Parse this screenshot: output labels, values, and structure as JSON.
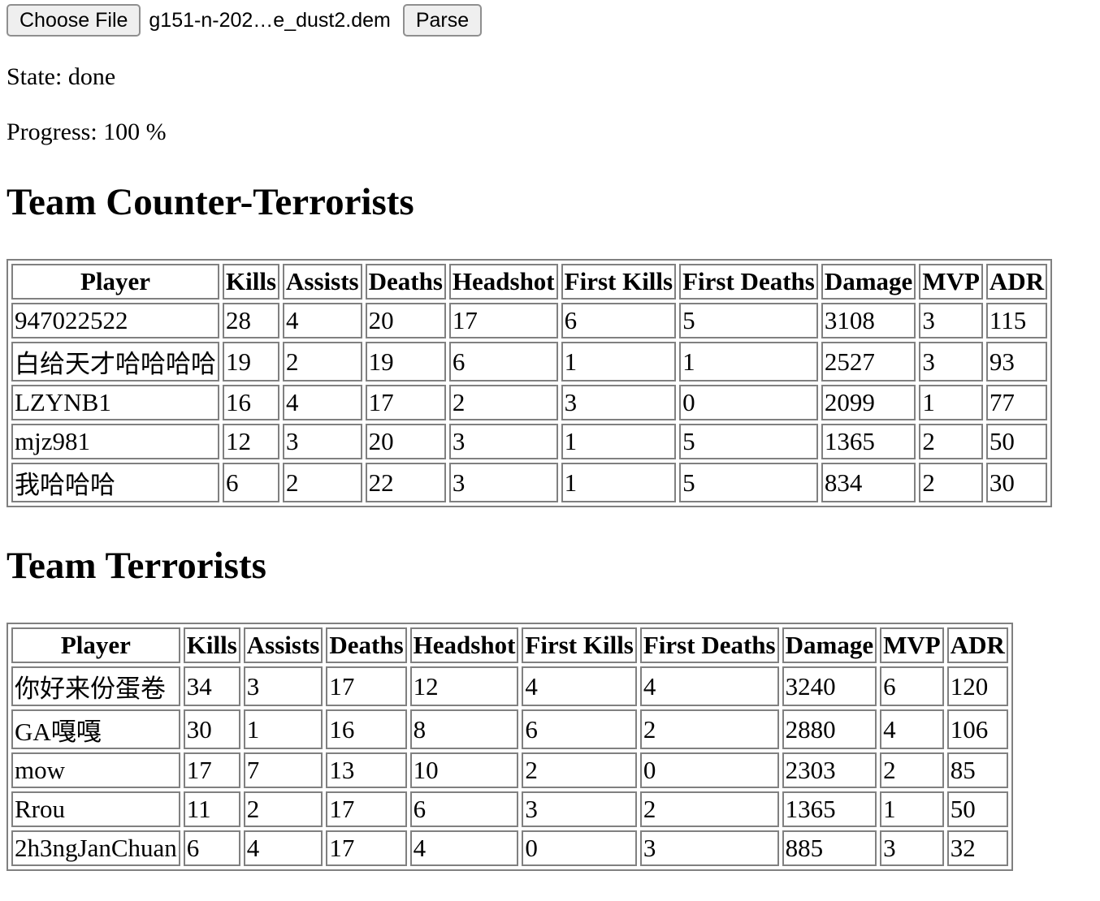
{
  "file_input": {
    "choose_label": "Choose File",
    "filename": "g151-n-202…e_dust2.dem",
    "parse_label": "Parse"
  },
  "status": {
    "state": "State: done",
    "progress": "Progress: 100 %"
  },
  "columns": [
    "Player",
    "Kills",
    "Assists",
    "Deaths",
    "Headshot",
    "First Kills",
    "First Deaths",
    "Damage",
    "MVP",
    "ADR"
  ],
  "teams": [
    {
      "title": "Team Counter-Terrorists",
      "rows": [
        [
          "947022522",
          "28",
          "4",
          "20",
          "17",
          "6",
          "5",
          "3108",
          "3",
          "115"
        ],
        [
          "白给天才哈哈哈哈",
          "19",
          "2",
          "19",
          "6",
          "1",
          "1",
          "2527",
          "3",
          "93"
        ],
        [
          "LZYNB1",
          "16",
          "4",
          "17",
          "2",
          "3",
          "0",
          "2099",
          "1",
          "77"
        ],
        [
          "mjz981",
          "12",
          "3",
          "20",
          "3",
          "1",
          "5",
          "1365",
          "2",
          "50"
        ],
        [
          "我哈哈哈",
          "6",
          "2",
          "22",
          "3",
          "1",
          "5",
          "834",
          "2",
          "30"
        ]
      ]
    },
    {
      "title": "Team Terrorists",
      "rows": [
        [
          "你好来份蛋卷",
          "34",
          "3",
          "17",
          "12",
          "4",
          "4",
          "3240",
          "6",
          "120"
        ],
        [
          "GA嘎嘎",
          "30",
          "1",
          "16",
          "8",
          "6",
          "2",
          "2880",
          "4",
          "106"
        ],
        [
          "mow",
          "17",
          "7",
          "13",
          "10",
          "2",
          "0",
          "2303",
          "2",
          "85"
        ],
        [
          "Rrou",
          "11",
          "2",
          "17",
          "6",
          "3",
          "2",
          "1365",
          "1",
          "50"
        ],
        [
          "2h3ngJanChuan",
          "6",
          "4",
          "17",
          "4",
          "0",
          "3",
          "885",
          "3",
          "32"
        ]
      ]
    }
  ]
}
